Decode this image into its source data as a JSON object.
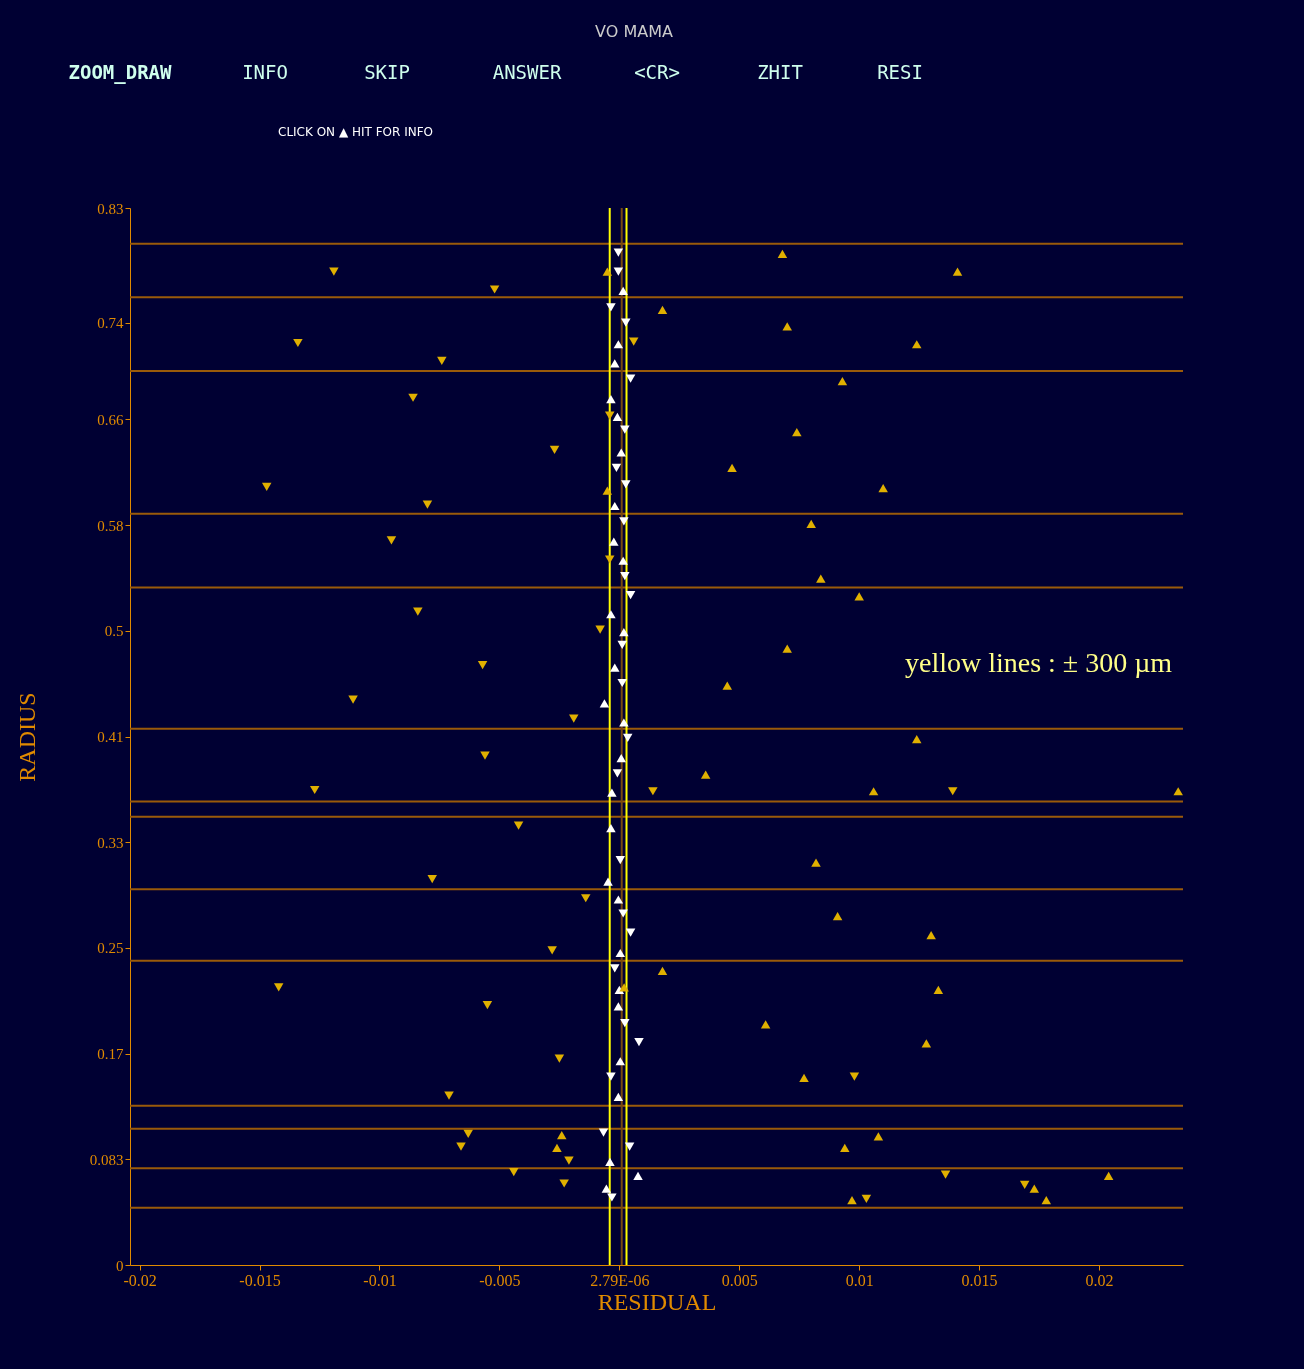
{
  "chart_data": {
    "type": "scatter",
    "title": "VO MAMA",
    "xlabel": "RESIDUAL",
    "ylabel": "RADIUS",
    "annotations": [
      "ZOOM_DRAW",
      "INFO",
      "SKIP",
      "ANSWER",
      "<CR>",
      "ZHIT",
      "RESI",
      "CLICK ON ▲ HIT FOR INFO",
      "yellow lines :  ± 300 µm"
    ],
    "xlim": [
      -0.0204,
      0.0235
    ],
    "ylim": [
      0,
      0.83
    ],
    "xticks": [
      -0.02,
      -0.015,
      -0.01,
      -0.005,
      {
        "value": 2.79e-06,
        "label": "2.79E-06"
      },
      0.005,
      0.01,
      0.015,
      0.02
    ],
    "yticks": [
      0,
      {
        "value": 0.083,
        "label": "0.083"
      },
      {
        "value": 0.166,
        "label": "0.17"
      },
      {
        "value": 0.249,
        "label": "0.25"
      },
      {
        "value": 0.332,
        "label": "0.33"
      },
      {
        "value": 0.415,
        "label": "0.41"
      },
      {
        "value": 0.498,
        "label": "0.5"
      },
      {
        "value": 0.581,
        "label": "0.58"
      },
      {
        "value": 0.664,
        "label": "0.66"
      },
      0.74,
      {
        "value": 0.83,
        "label": "0.83"
      }
    ],
    "grid": false,
    "ref_lines": [
      {
        "axis": "x",
        "value": -0.0004,
        "label": null,
        "color": "#ffff00"
      },
      {
        "axis": "x",
        "value": 0.0003,
        "label": null,
        "color": "#ffff00"
      },
      {
        "axis": "x",
        "value": 0.0001,
        "label": null,
        "color": "#7a4a10"
      },
      {
        "axis": "y",
        "value": 0.802,
        "label": null,
        "color": "#9a5a0a"
      },
      {
        "axis": "y",
        "value": 0.76,
        "label": null,
        "color": "#9a5a0a"
      },
      {
        "axis": "y",
        "value": 0.702,
        "label": null,
        "color": "#9a5a0a"
      },
      {
        "axis": "y",
        "value": 0.59,
        "label": null,
        "color": "#9a5a0a"
      },
      {
        "axis": "y",
        "value": 0.532,
        "label": null,
        "color": "#9a5a0a"
      },
      {
        "axis": "y",
        "value": 0.421,
        "label": null,
        "color": "#9a5a0a"
      },
      {
        "axis": "y",
        "value": 0.364,
        "label": null,
        "color": "#9a5a0a"
      },
      {
        "axis": "y",
        "value": 0.352,
        "label": null,
        "color": "#9a5a0a"
      },
      {
        "axis": "y",
        "value": 0.295,
        "label": null,
        "color": "#9a5a0a"
      },
      {
        "axis": "y",
        "value": 0.239,
        "label": null,
        "color": "#9a5a0a"
      },
      {
        "axis": "y",
        "value": 0.125,
        "label": null,
        "color": "#9a5a0a"
      },
      {
        "axis": "y",
        "value": 0.107,
        "label": null,
        "color": "#9a5a0a"
      },
      {
        "axis": "y",
        "value": 0.076,
        "label": null,
        "color": "#9a5a0a"
      },
      {
        "axis": "y",
        "value": 0.045,
        "label": null,
        "color": "#9a5a0a"
      }
    ],
    "series": [
      {
        "color": "#ffffff",
        "marker": "triangle-down",
        "x": [
          -4e-05,
          -4e-05,
          -0.00035,
          0.00027,
          0.00047,
          0.00023,
          -0.00012,
          0.00027,
          0.00019,
          0.00023,
          0.00047,
          0.00012,
          0.00012,
          0.00035,
          -8e-05,
          4e-05,
          0.00016,
          0.00047,
          -0.00019,
          0.00023,
          0.00082,
          -0.00035,
          -0.00066,
          0.00043,
          -0.00031
        ],
        "values": [
          0.795,
          0.78,
          0.752,
          0.74,
          0.696,
          0.656,
          0.626,
          0.613,
          0.584,
          0.541,
          0.526,
          0.487,
          0.457,
          0.414,
          0.386,
          0.318,
          0.276,
          0.261,
          0.233,
          0.19,
          0.175,
          0.148,
          0.104,
          0.093,
          0.053
        ]
      },
      {
        "color": "#ffffff",
        "marker": "triangle",
        "x": [
          0.00016,
          -4e-05,
          -0.00019,
          -0.00035,
          -8e-05,
          8e-05,
          -0.00019,
          -0.00023,
          0.00016,
          -0.00035,
          0.00019,
          -0.00019,
          -0.00062,
          0.00019,
          8e-05,
          -0.00031,
          -0.00035,
          -0.00047,
          -4e-05,
          4e-05,
          0.0,
          -4e-05,
          4e-05,
          -4e-05,
          -0.00039,
          0.00078,
          -0.00054
        ],
        "values": [
          0.765,
          0.723,
          0.708,
          0.68,
          0.666,
          0.638,
          0.596,
          0.568,
          0.553,
          0.511,
          0.497,
          0.469,
          0.441,
          0.426,
          0.398,
          0.371,
          0.343,
          0.301,
          0.287,
          0.245,
          0.216,
          0.203,
          0.16,
          0.132,
          0.081,
          0.07,
          0.06
        ]
      },
      {
        "color": "#e0b000",
        "marker": "triangle-down",
        "x": [
          -0.0119,
          -0.0052,
          -0.0134,
          -0.0074,
          0.0006,
          -0.0086,
          -0.0004,
          -0.0027,
          -0.0147,
          -0.008,
          -0.0095,
          -0.0004,
          -0.0084,
          -0.0008,
          -0.0057,
          -0.0111,
          -0.0019,
          -0.0056,
          -0.0127,
          0.0014,
          0.0139,
          -0.0042,
          -0.0078,
          -0.0014,
          -0.0028,
          -0.0142,
          -0.0055,
          -0.0025,
          0.0098,
          -0.0071,
          -0.0063,
          -0.0066,
          -0.0021,
          -0.0044,
          -0.0023,
          0.0136,
          0.0103,
          0.0169
        ],
        "values": [
          0.78,
          0.766,
          0.724,
          0.71,
          0.725,
          0.681,
          0.667,
          0.64,
          0.611,
          0.597,
          0.569,
          0.554,
          0.513,
          0.499,
          0.471,
          0.444,
          0.429,
          0.4,
          0.373,
          0.372,
          0.372,
          0.345,
          0.303,
          0.288,
          0.247,
          0.218,
          0.204,
          0.162,
          0.148,
          0.133,
          0.103,
          0.093,
          0.082,
          0.073,
          0.064,
          0.071,
          0.052,
          0.063
        ]
      },
      {
        "color": "#e0b000",
        "marker": "triangle",
        "x": [
          0.0068,
          0.0141,
          -0.0005,
          0.0018,
          0.007,
          0.0124,
          0.0093,
          0.0074,
          0.0047,
          0.011,
          -0.0005,
          0.008,
          0.0084,
          0.01,
          0.007,
          0.0045,
          0.0124,
          0.0036,
          0.0106,
          0.0233,
          0.0082,
          0.0091,
          0.013,
          0.0018,
          0.0002,
          0.0133,
          0.0061,
          0.0128,
          0.0077,
          0.0108,
          -0.0024,
          -0.0026,
          0.0094,
          0.0204,
          0.0173,
          0.0178,
          0.0097
        ],
        "values": [
          0.794,
          0.78,
          0.78,
          0.75,
          0.737,
          0.723,
          0.694,
          0.654,
          0.626,
          0.61,
          0.608,
          0.582,
          0.539,
          0.525,
          0.484,
          0.455,
          0.413,
          0.385,
          0.372,
          0.372,
          0.316,
          0.274,
          0.259,
          0.231,
          0.218,
          0.216,
          0.189,
          0.174,
          0.147,
          0.101,
          0.102,
          0.092,
          0.092,
          0.07,
          0.06,
          0.051,
          0.051
        ]
      }
    ]
  }
}
